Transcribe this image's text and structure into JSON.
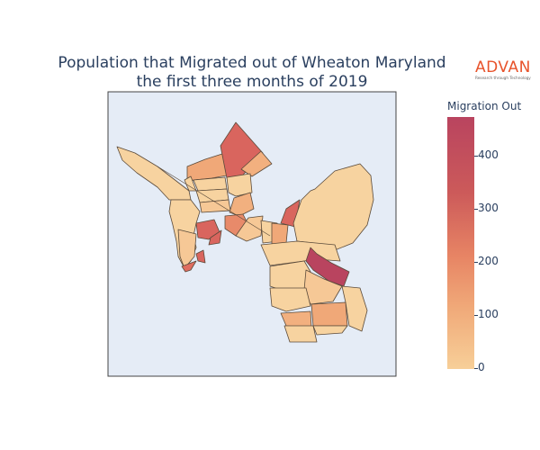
{
  "title": {
    "line1": "Population that Migrated out of Wheaton Maryland",
    "line2": "the first three months of 2019"
  },
  "logo": {
    "brand": "ADVAN",
    "tagline": "Research through Technology",
    "color": "#e8532b"
  },
  "colorbar": {
    "title": "Migration Out",
    "ticks": [
      "400",
      "300",
      "200",
      "100",
      "0"
    ],
    "range": [
      0,
      480
    ],
    "colors": [
      "#f7d3a0",
      "#f2b07f",
      "#e88a6a",
      "#d9655e",
      "#b9445f"
    ]
  },
  "map": {
    "background": "#e5ecf6",
    "border_color": "#444444"
  }
}
